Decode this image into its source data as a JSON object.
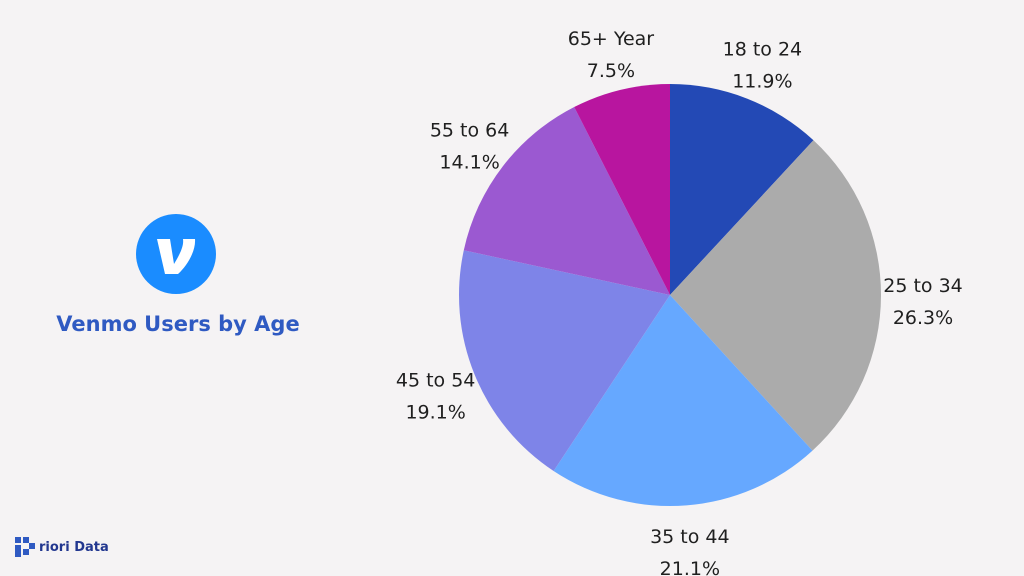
{
  "brand": {
    "name": "riori Data",
    "mark_color": "#2f5ac2"
  },
  "logo": {
    "icon": "venmo-icon",
    "letter": "v",
    "color": "#1a8cff"
  },
  "chart_data": {
    "type": "pie",
    "title": "Venmo Users by Age",
    "start_angle_deg": 0,
    "direction": "clockwise",
    "slices": [
      {
        "label": "18 to 24",
        "value": 11.9,
        "value_label": "11.9%",
        "color": "#2349b5"
      },
      {
        "label": "25 to 34",
        "value": 26.3,
        "value_label": "26.3%",
        "color": "#ababab"
      },
      {
        "label": "35 to 44",
        "value": 21.1,
        "value_label": "21.1%",
        "color": "#66a8ff"
      },
      {
        "label": "45 to 54",
        "value": 19.1,
        "value_label": "19.1%",
        "color": "#7e84e8"
      },
      {
        "label": "55 to 64",
        "value": 14.1,
        "value_label": "14.1%",
        "color": "#9b59d1"
      },
      {
        "label": "65+ Year",
        "value": 7.5,
        "value_label": "7.5%",
        "color": "#b8159f"
      }
    ]
  }
}
